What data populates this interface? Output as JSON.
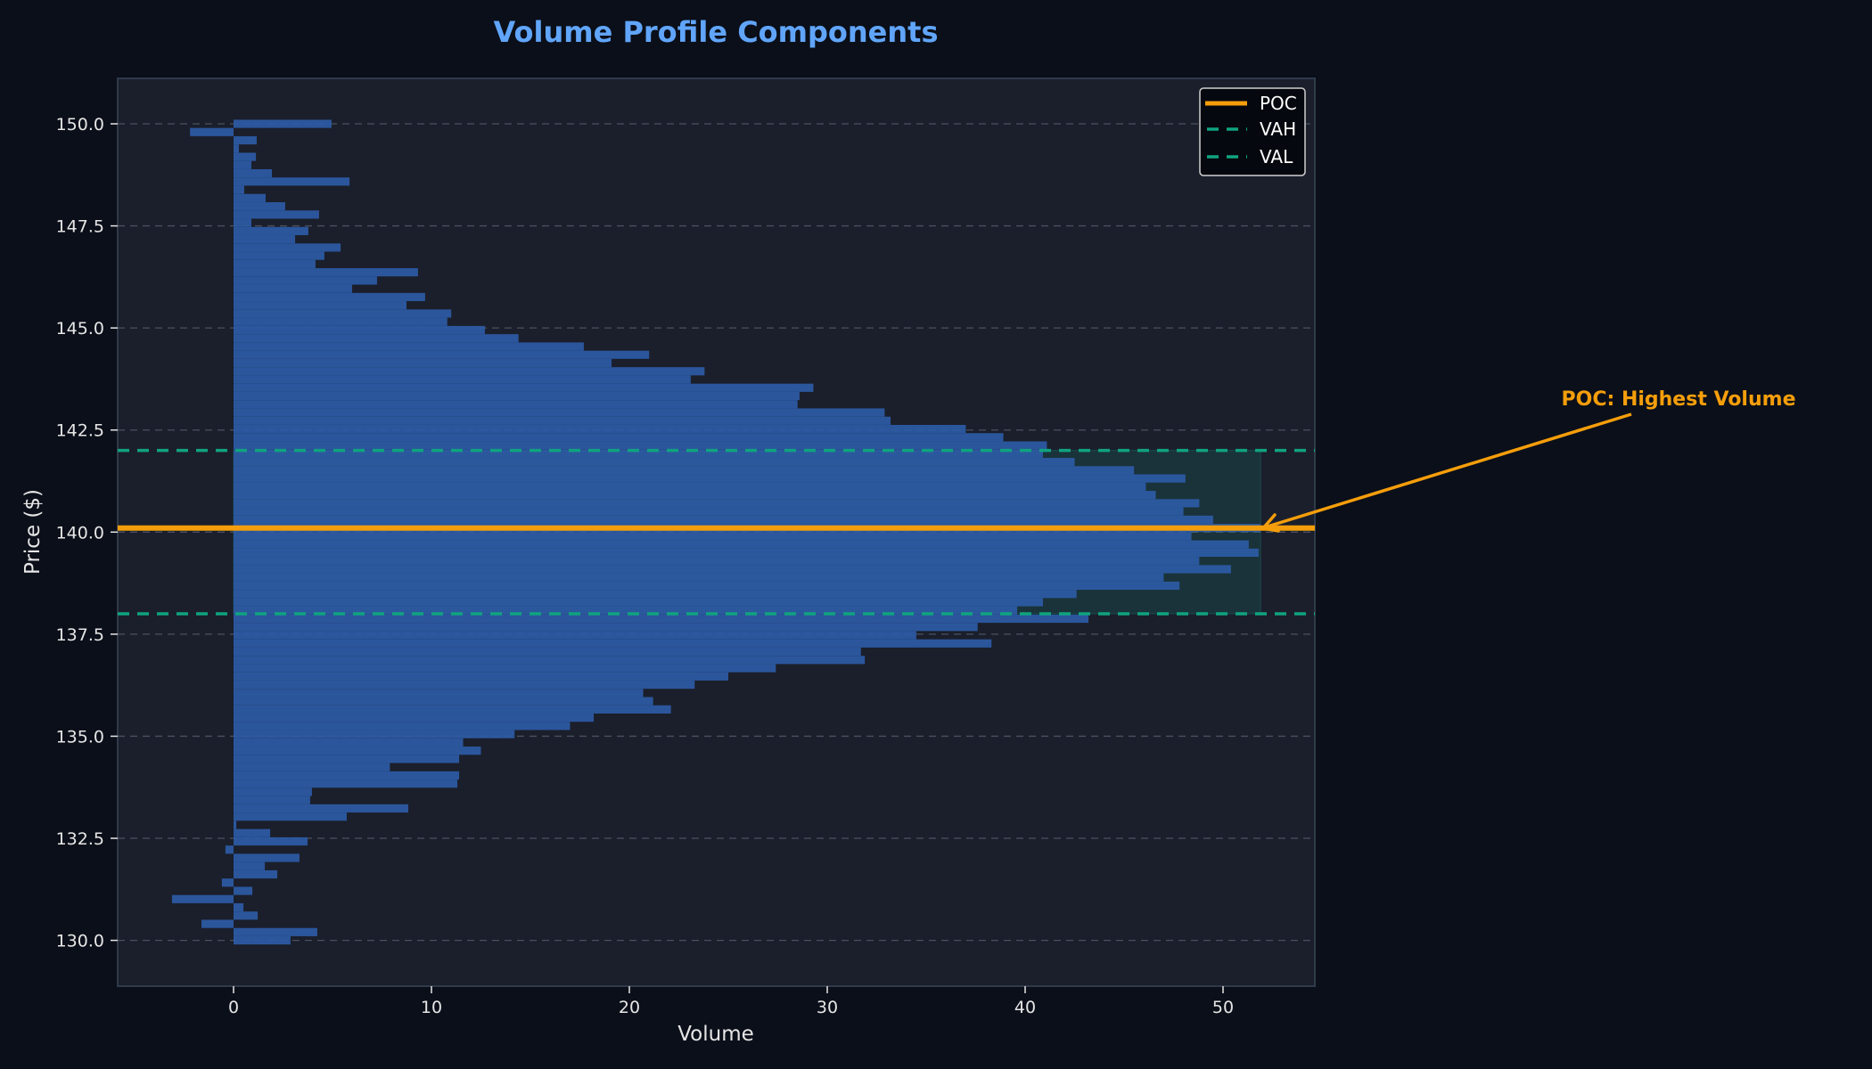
{
  "chart_data": {
    "type": "bar",
    "orientation": "horizontal",
    "title": "Volume Profile Components",
    "xlabel": "Volume",
    "ylabel": "Price ($)",
    "xlim": [
      -5.9,
      54.6
    ],
    "ylim": [
      128.9,
      151.1
    ],
    "xticks": [
      0,
      10,
      20,
      30,
      40,
      50
    ],
    "yticks": [
      "130.0",
      "132.5",
      "135.0",
      "137.5",
      "140.0",
      "142.5",
      "145.0",
      "147.5",
      "150.0"
    ],
    "grid": "horizontal dashed",
    "price_start": 150.0,
    "price_end": 130.0,
    "num_bins": 100,
    "volumes": [
      4.95,
      -2.2,
      1.17,
      0.27,
      1.13,
      0.9,
      1.94,
      5.86,
      0.54,
      1.62,
      2.61,
      4.32,
      0.9,
      3.78,
      3.11,
      5.41,
      4.59,
      4.14,
      9.32,
      7.25,
      5.99,
      9.68,
      8.74,
      11.0,
      10.8,
      12.7,
      14.4,
      17.7,
      21.0,
      19.1,
      23.8,
      23.1,
      29.3,
      28.6,
      28.5,
      32.9,
      33.2,
      37.0,
      38.9,
      41.1,
      40.9,
      42.5,
      45.5,
      48.1,
      46.1,
      46.6,
      48.8,
      48.0,
      49.5,
      51.9,
      48.4,
      51.3,
      51.8,
      48.8,
      50.4,
      47.0,
      47.8,
      42.6,
      40.9,
      39.6,
      43.2,
      37.6,
      34.5,
      38.3,
      31.7,
      31.9,
      27.4,
      25.0,
      23.3,
      20.7,
      21.2,
      22.1,
      18.2,
      17.0,
      14.2,
      11.6,
      12.5,
      11.4,
      7.9,
      11.4,
      11.31,
      3.96,
      3.87,
      8.83,
      5.72,
      0.14,
      1.85,
      3.74,
      -0.41,
      3.33,
      1.58,
      2.21,
      -0.59,
      0.95,
      -3.11,
      0.5,
      1.22,
      -1.62,
      4.23,
      2.88
    ],
    "poc": {
      "price": 140.1,
      "label": "POC",
      "color": "#f59e0b"
    },
    "vah": {
      "price": 142.0,
      "label": "VAH",
      "color": "#10a37f"
    },
    "val": {
      "price": 138.0,
      "label": "VAL",
      "color": "#10a37f"
    },
    "value_area": {
      "low": 138.0,
      "high": 142.0,
      "max_volume": 51.9
    },
    "legend": {
      "position": "upper right",
      "entries": [
        "POC",
        "VAH",
        "VAL"
      ]
    },
    "annotation": {
      "text": "POC: Highest Volume",
      "target_volume": 51.9,
      "target_price": 140.1
    }
  },
  "colors": {
    "page_bg": "#0b0f19",
    "plot_bg": "#1b1f2b",
    "frame": "#2f3a4a",
    "bar": "#2d5ca8",
    "value_area_fill": "#1a3a3a",
    "grid": "#4a5060",
    "title": "#60a5fa"
  }
}
